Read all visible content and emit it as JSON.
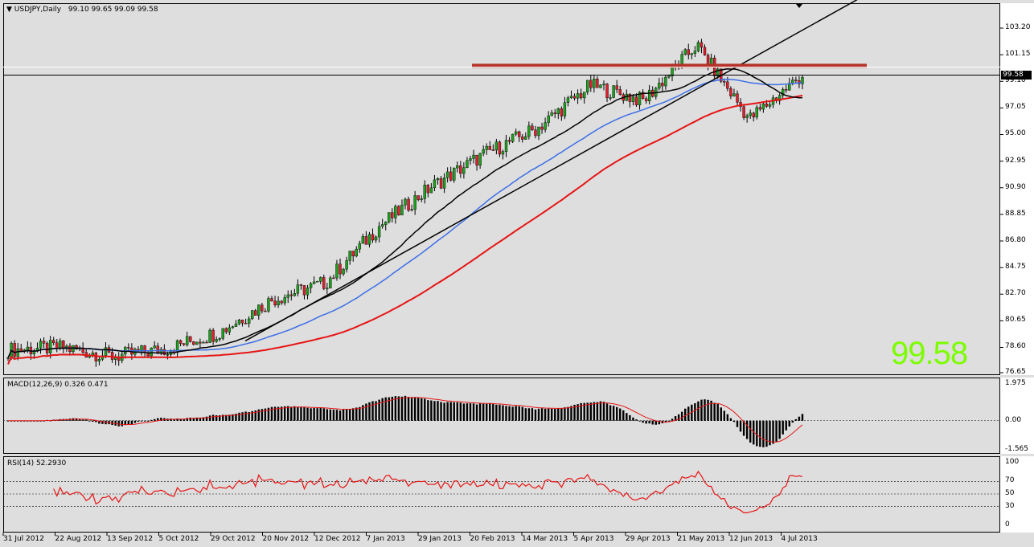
{
  "window": {
    "symbol_label": "USDJPY,Daily",
    "ohlc": "99.10 99.65 99.09 99.58",
    "last_price": "99.58",
    "price_tag": "99.58"
  },
  "price_axis": {
    "ticks": [
      "103.20",
      "101.15",
      "99.10",
      "97.05",
      "95.00",
      "92.95",
      "90.90",
      "88.85",
      "86.80",
      "84.75",
      "82.70",
      "80.65",
      "78.60",
      "76.65"
    ]
  },
  "macd": {
    "title": "MACD(12,26,9) 0.326 0.471",
    "ticks": [
      "1.975",
      "0.00",
      "-1.565"
    ]
  },
  "rsi": {
    "title": "RSI(14) 52.2930",
    "ticks": [
      "100",
      "70",
      "50",
      "30",
      "0"
    ]
  },
  "date_axis": {
    "labels": [
      "31 Jul 2012",
      "22 Aug 2012",
      "13 Sep 2012",
      "5 Oct 2012",
      "29 Oct 2012",
      "20 Nov 2012",
      "12 Dec 2012",
      "7 Jan 2013",
      "29 Jan 2013",
      "20 Feb 2013",
      "14 Mar 2013",
      "5 Apr 2013",
      "29 Apr 2013",
      "21 May 2013",
      "12 Jun 2013",
      "4 Jul 2013"
    ]
  },
  "colors": {
    "up_candle": "#1ea01e",
    "down_candle": "#dc1e2d",
    "ma_fast": "#000000",
    "ma_mid": "#3c6ee6",
    "ma_slow": "#e61414",
    "resistance": "#b43228",
    "macd_signal": "#e61414",
    "rsi_line": "#e61414",
    "big_price": "#7cfc00"
  },
  "chart_data": {
    "type": "line",
    "instrument": "USDJPY",
    "timeframe": "Daily",
    "price_ylim": [
      76.65,
      103.2
    ],
    "series": [
      {
        "name": "close",
        "x": [
          "31 Jul 2012",
          "22 Aug 2012",
          "13 Sep 2012",
          "5 Oct 2012",
          "29 Oct 2012",
          "20 Nov 2012",
          "12 Dec 2012",
          "7 Jan 2013",
          "29 Jan 2013",
          "20 Feb 2013",
          "14 Mar 2013",
          "5 Apr 2013",
          "29 Apr 2013",
          "21 May 2013",
          "12 Jun 2013",
          "4 Jul 2013"
        ],
        "values": [
          78.4,
          78.6,
          77.9,
          78.5,
          79.8,
          82.3,
          83.6,
          87.9,
          91.0,
          93.5,
          95.5,
          98.8,
          97.6,
          101.9,
          96.2,
          99.58
        ]
      }
    ],
    "resistance_level": 100.3,
    "macd_ylim": [
      -1.565,
      1.975
    ],
    "rsi_levels": [
      30,
      50,
      70
    ]
  }
}
